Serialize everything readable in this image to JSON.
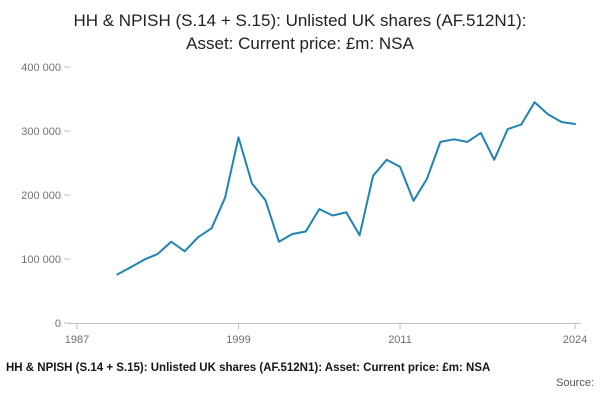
{
  "header": {
    "title_line1": "HH & NPISH (S.14 + S.15): Unlisted UK shares (AF.512N1):",
    "title_line2": "Asset: Current price: £m: NSA"
  },
  "footer": {
    "title": "HH & NPISH (S.14 + S.15): Unlisted UK shares (AF.512N1): Asset: Current price: £m: NSA",
    "source": "Source:"
  },
  "chart_data": {
    "type": "line",
    "title": "HH & NPISH (S.14 + S.15): Unlisted UK shares (AF.512N1): Asset: Current price: £m: NSA",
    "xlabel": "",
    "ylabel": "",
    "x": [
      1990,
      1991,
      1992,
      1993,
      1994,
      1995,
      1996,
      1997,
      1998,
      1999,
      2000,
      2001,
      2002,
      2003,
      2004,
      2005,
      2006,
      2007,
      2008,
      2009,
      2010,
      2011,
      2012,
      2013,
      2014,
      2015,
      2016,
      2017,
      2018,
      2019,
      2020,
      2021,
      2022,
      2023,
      2024
    ],
    "values": [
      76000,
      87000,
      99000,
      108000,
      127000,
      112000,
      134000,
      148000,
      196000,
      290000,
      218000,
      192000,
      127000,
      139000,
      143000,
      178000,
      168000,
      173000,
      137000,
      230000,
      255000,
      244000,
      191000,
      225000,
      283000,
      287000,
      283000,
      297000,
      255000,
      303000,
      310000,
      345000,
      326000,
      314000,
      311000
    ],
    "xlim": [
      1987,
      2024
    ],
    "ylim": [
      0,
      400000
    ],
    "xticks": {
      "values": [
        1987,
        1999,
        2011,
        2024
      ],
      "labels": [
        "1987",
        "1999",
        "2011",
        "2024"
      ]
    },
    "yticks": {
      "values": [
        0,
        100000,
        200000,
        300000,
        400000
      ],
      "labels": [
        "0",
        "100 000",
        "200 000",
        "300 000",
        "400 000"
      ]
    },
    "grid": false,
    "legend": "none",
    "line_color": "#1f83b5",
    "axis_color": "#c0c0c0"
  }
}
